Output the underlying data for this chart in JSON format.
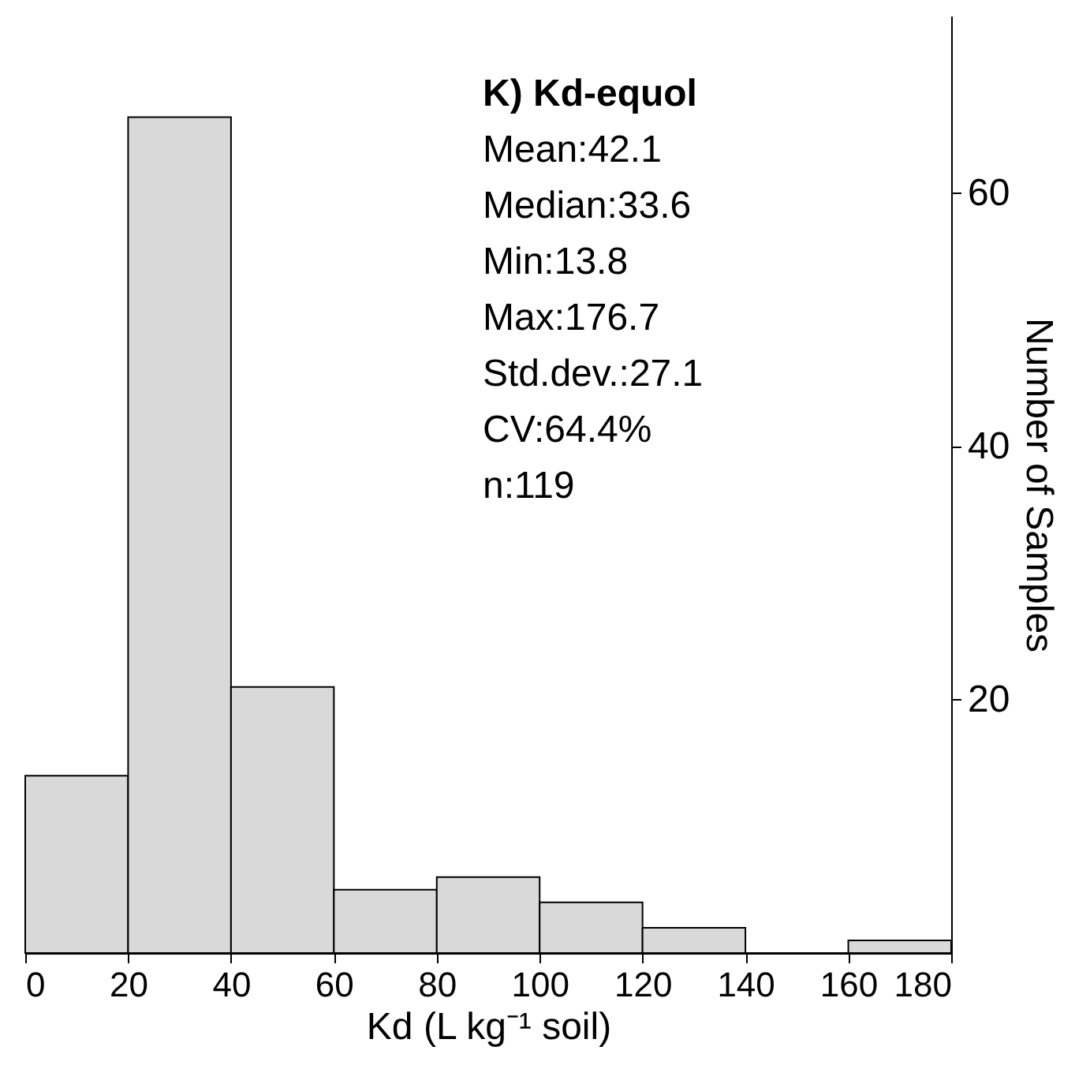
{
  "chart_data": {
    "type": "histogram",
    "title": "K) Kd-equol",
    "annotations": [
      "Mean:42.1",
      "Median:33.6",
      "Min:13.8",
      "Max:176.7",
      "Std.dev.:27.1",
      "CV:64.4%",
      "n:119"
    ],
    "xlabel": "Kd (L kg⁻¹ soil)",
    "ylabel": "Number of Samples",
    "bins": [
      0,
      20,
      40,
      60,
      80,
      100,
      120,
      140,
      160,
      180
    ],
    "values": [
      14,
      66,
      21,
      5,
      6,
      4,
      2,
      0,
      1
    ],
    "color": "#d9d9d9",
    "xlim": [
      0,
      180
    ],
    "xticks": [
      0,
      20,
      40,
      60,
      80,
      100,
      120,
      140,
      160,
      180
    ],
    "ylim": [
      0,
      74
    ],
    "yticks": [
      20,
      40,
      60
    ],
    "grid": false
  }
}
